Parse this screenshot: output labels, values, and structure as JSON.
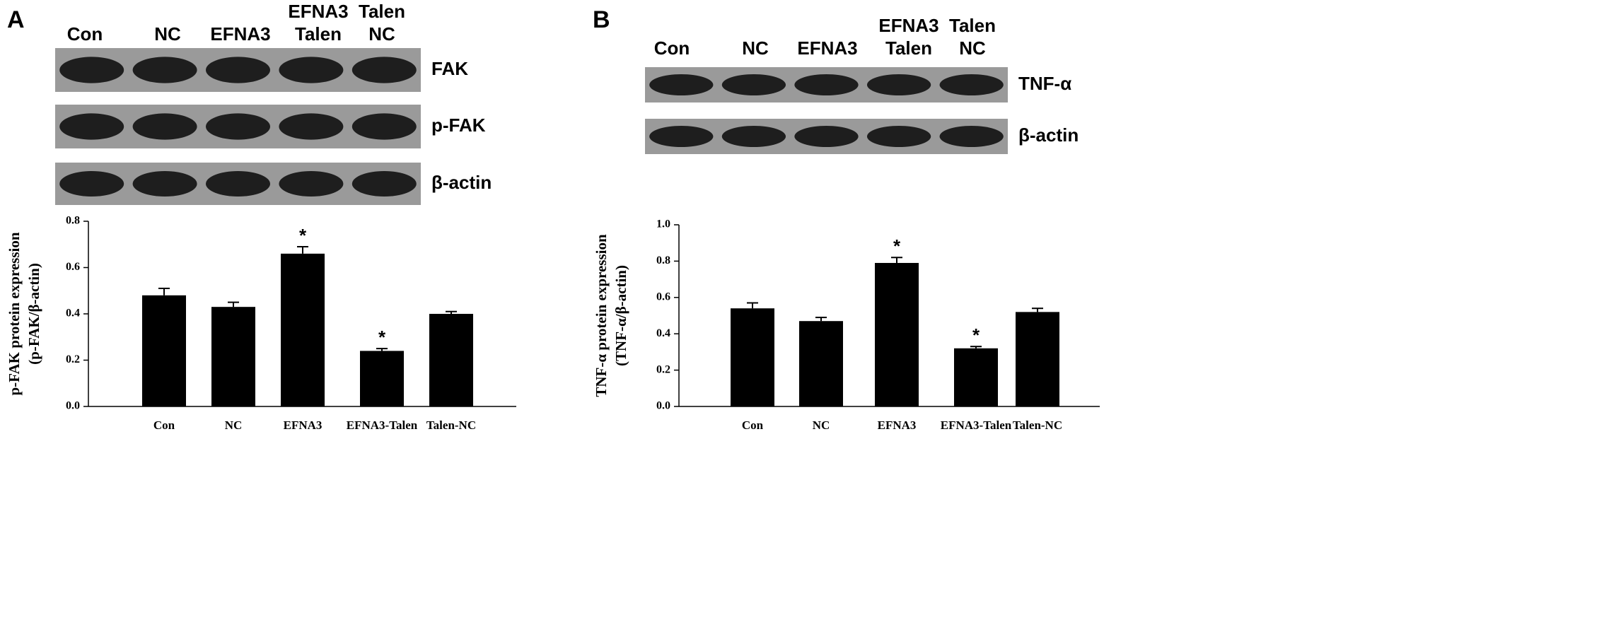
{
  "panels": [
    {
      "label": "A",
      "blot": {
        "lanes": [
          [
            "Con"
          ],
          [
            "NC"
          ],
          [
            "EFNA3"
          ],
          [
            "EFNA3",
            "Talen"
          ],
          [
            "Talen",
            "NC"
          ]
        ],
        "bands": [
          "FAK",
          "p-FAK",
          "β-actin"
        ]
      }
    },
    {
      "label": "B",
      "blot": {
        "lanes": [
          [
            "Con"
          ],
          [
            "NC"
          ],
          [
            "EFNA3"
          ],
          [
            "EFNA3",
            "Talen"
          ],
          [
            "Talen",
            "NC"
          ]
        ],
        "bands": [
          "TNF-α",
          "β-actin"
        ]
      }
    }
  ],
  "chart_data": [
    {
      "type": "bar",
      "y_label": [
        "p-FAK protein expression",
        "(p-FAK/β-actin)"
      ],
      "categories": [
        "Con",
        "NC",
        "EFNA3",
        "EFNA3-Talen",
        "Talen-NC"
      ],
      "values": [
        0.48,
        0.43,
        0.66,
        0.24,
        0.4
      ],
      "errors": [
        0.03,
        0.02,
        0.03,
        0.01,
        0.01
      ],
      "significance": [
        null,
        null,
        "*",
        "*",
        null
      ],
      "color": "#000000",
      "ylim": [
        0,
        0.8
      ],
      "yticks": [
        {
          "value": 0,
          "label": "0.0"
        },
        0.2,
        0.4,
        0.6,
        0.8
      ]
    },
    {
      "type": "bar",
      "y_label": [
        "TNF-α protein expression",
        "(TNF-α/β-actin)"
      ],
      "categories": [
        "Con",
        "NC",
        "EFNA3",
        "EFNA3-Talen",
        "Talen-NC"
      ],
      "values": [
        0.54,
        0.47,
        0.79,
        0.32,
        0.52
      ],
      "errors": [
        0.03,
        0.02,
        0.03,
        0.01,
        0.02
      ],
      "significance": [
        null,
        null,
        "*",
        "*",
        null
      ],
      "color": "#000000",
      "ylim": [
        0,
        1
      ],
      "yticks": [
        {
          "value": 0,
          "label": "0.0"
        },
        0.2,
        0.4,
        0.6,
        0.8,
        {
          "value": 1,
          "label": "1.0"
        }
      ]
    }
  ]
}
